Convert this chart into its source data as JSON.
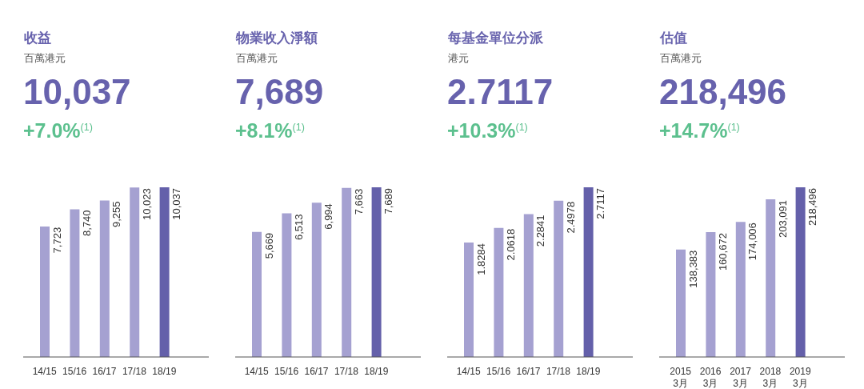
{
  "chart_data": [
    {
      "type": "bar",
      "title": "收益",
      "subtitle": "百萬港元",
      "annotations": [
        "10,037",
        "+7.0%$^{(1)}$"
      ],
      "categories": [
        "14/15",
        "15/16",
        "16/17",
        "17/18",
        "18/19"
      ],
      "values": [
        7723,
        8740,
        9255,
        10023,
        10037
      ],
      "value_labels": [
        "7,723",
        "8,740",
        "9,255",
        "10,023",
        "10,037"
      ],
      "colors": [
        "#a5a1d1",
        "#a5a1d1",
        "#a5a1d1",
        "#a5a1d1",
        "#6460aa"
      ],
      "tick_labels": "x"
    },
    {
      "type": "bar",
      "title": "物業收入淨額",
      "subtitle": "百萬港元",
      "annotations": [
        "7,689",
        "+8.1%$^{(1)}$"
      ],
      "categories": [
        "14/15",
        "15/16",
        "16/17",
        "17/18",
        "18/19"
      ],
      "values": [
        5669,
        6513,
        6994,
        7663,
        7689
      ],
      "value_labels": [
        "5,669",
        "6,513",
        "6,994",
        "7,663",
        "7,689"
      ],
      "colors": [
        "#a5a1d1",
        "#a5a1d1",
        "#a5a1d1",
        "#a5a1d1",
        "#6460aa"
      ],
      "tick_labels": "x"
    },
    {
      "type": "bar",
      "title": "每基金單位分派",
      "subtitle": "港元",
      "annotations": [
        "2.7117",
        "+10.3%$^{(1)}$"
      ],
      "categories": [
        "14/15",
        "15/16",
        "16/17",
        "17/18",
        "18/19"
      ],
      "values": [
        1.8284,
        2.0618,
        2.2841,
        2.4978,
        2.7117
      ],
      "value_labels": [
        "1.8284",
        "2.0618",
        "2.2841",
        "2.4978",
        "2.7117"
      ],
      "colors": [
        "#a5a1d1",
        "#a5a1d1",
        "#a5a1d1",
        "#a5a1d1",
        "#6460aa"
      ],
      "tick_labels": "x"
    },
    {
      "type": "bar",
      "title": "估值",
      "subtitle": "百萬港元",
      "annotations": [
        "218,496",
        "+14.7%$^{(1)}$"
      ],
      "categories": [
        "2015\n3月",
        "2016\n3月",
        "2017\n3月",
        "2018\n3月",
        "2019\n3月"
      ],
      "values": [
        138383,
        160672,
        174006,
        203091,
        218496
      ],
      "value_labels": [
        "138,383",
        "160,672",
        "174,006",
        "203,091",
        "218,496"
      ],
      "colors": [
        "#a5a1d1",
        "#a5a1d1",
        "#a5a1d1",
        "#a5a1d1",
        "#6460aa"
      ],
      "tick_labels": "x"
    }
  ]
}
